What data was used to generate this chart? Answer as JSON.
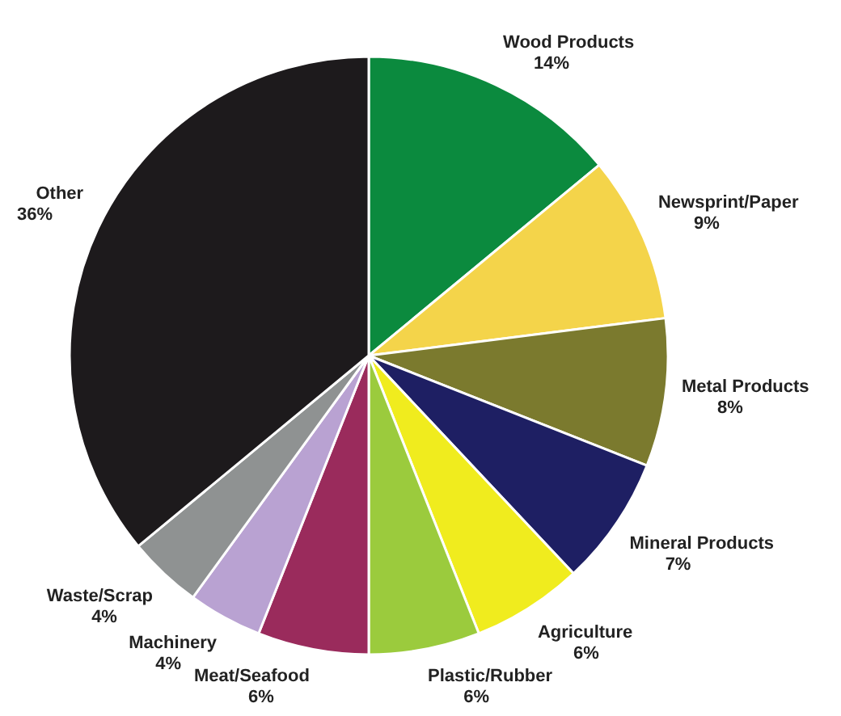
{
  "chart_data": {
    "type": "pie",
    "categories": [
      "Wood Products",
      "Newsprint/Paper",
      "Metal Products",
      "Mineral Products",
      "Agriculture",
      "Plastic/Rubber",
      "Meat/Seafood",
      "Machinery",
      "Waste/Scrap",
      "Other"
    ],
    "values": [
      14,
      9,
      8,
      7,
      6,
      6,
      6,
      4,
      4,
      36
    ],
    "value_labels": [
      "14%",
      "9%",
      "8%",
      "7%",
      "6%",
      "6%",
      "6%",
      "4%",
      "4%",
      "36%"
    ],
    "colors": [
      "#0b8a3e",
      "#f4d44a",
      "#7b7a2e",
      "#1e1f63",
      "#f0ec1e",
      "#9bcb3d",
      "#9a2b5c",
      "#b9a2d2",
      "#8f9292",
      "#1d1a1c"
    ]
  }
}
